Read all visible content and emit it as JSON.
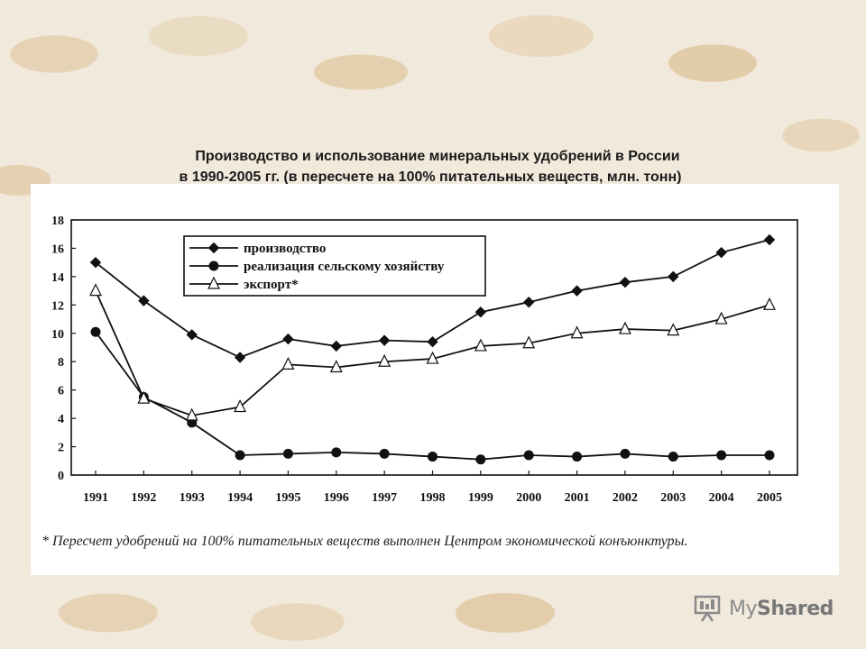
{
  "title": {
    "line1": "Производство и использование минеральных удобрений в России",
    "line2": "в 1990-2005 гг. (в пересчете на 100% питательных веществ, млн. тонн)"
  },
  "footnote": "* Пересчет удобрений на 100% питательных веществ выполнен Центром экономической конъюнктуры.",
  "watermark": {
    "brand_a": "My",
    "brand_b": "Shared"
  },
  "chart_data": {
    "type": "line",
    "title": "Производство и использование минеральных удобрений в России в 1990-2005 гг. (в пересчете на 100% питательных веществ, млн. тонн)",
    "xlabel": "",
    "ylabel": "",
    "ylim": [
      0,
      18
    ],
    "yticks": [
      "0",
      "2",
      "4",
      "6",
      "8",
      "10",
      "12",
      "14",
      "16",
      "18"
    ],
    "categories": [
      "1991",
      "1992",
      "1993",
      "1994",
      "1995",
      "1996",
      "1997",
      "1998",
      "1999",
      "2000",
      "2001",
      "2002",
      "2003",
      "2004",
      "2005"
    ],
    "legend_position": "top-left",
    "grid": false,
    "series": [
      {
        "name": "производство",
        "marker": "diamond",
        "values": [
          15.0,
          12.3,
          9.9,
          8.3,
          9.6,
          9.1,
          9.5,
          9.4,
          11.5,
          12.2,
          13.0,
          13.6,
          14.0,
          15.7,
          16.6
        ]
      },
      {
        "name": "реализация сельскому хозяйству",
        "marker": "circle",
        "values": [
          10.1,
          5.5,
          3.7,
          1.4,
          1.5,
          1.6,
          1.5,
          1.3,
          1.1,
          1.4,
          1.3,
          1.5,
          1.3,
          1.4,
          1.4
        ]
      },
      {
        "name": "экспорт*",
        "marker": "triangle",
        "values": [
          13.0,
          5.4,
          4.2,
          4.8,
          7.8,
          7.6,
          8.0,
          8.2,
          9.1,
          9.3,
          10.0,
          10.3,
          10.2,
          11.0,
          12.0
        ]
      }
    ]
  }
}
